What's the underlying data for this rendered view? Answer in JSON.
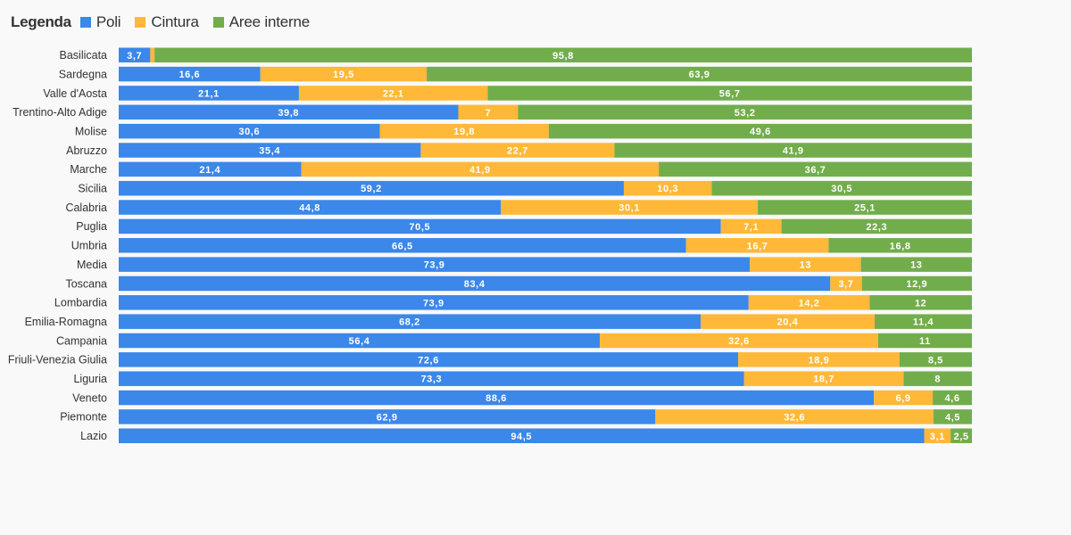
{
  "legend": {
    "title": "Legenda",
    "items": [
      {
        "name": "Poli",
        "color": "#3b87ea"
      },
      {
        "name": "Cintura",
        "color": "#ffb838"
      },
      {
        "name": "Aree interne",
        "color": "#72ad4c"
      }
    ]
  },
  "chart_data": {
    "type": "bar",
    "orientation": "horizontal",
    "stacked": true,
    "grid": false,
    "legend_position": "top-left",
    "categories": [
      "Basilicata",
      "Sardegna",
      "Valle d'Aosta",
      "Trentino-Alto Adige",
      "Molise",
      "Abruzzo",
      "Marche",
      "Sicilia",
      "Calabria",
      "Puglia",
      "Umbria",
      "Media",
      "Toscana",
      "Lombardia",
      "Emilia-Romagna",
      "Campania",
      "Friuli-Venezia Giulia",
      "Liguria",
      "Veneto",
      "Piemonte",
      "Lazio"
    ],
    "series": [
      {
        "name": "Poli",
        "color": "#3b87ea",
        "values": [
          3.7,
          16.6,
          21.1,
          39.8,
          30.6,
          35.4,
          21.4,
          59.2,
          44.8,
          70.5,
          66.5,
          73.9,
          83.4,
          73.9,
          68.2,
          56.4,
          72.6,
          73.3,
          88.6,
          62.9,
          94.5
        ]
      },
      {
        "name": "Cintura",
        "color": "#ffb838",
        "values": [
          0.5,
          19.5,
          22.1,
          7,
          19.8,
          22.7,
          41.9,
          10.3,
          30.1,
          7.1,
          16.7,
          13,
          3.7,
          14.2,
          20.4,
          32.6,
          18.9,
          18.7,
          6.9,
          32.6,
          3.1
        ]
      },
      {
        "name": "Aree interne",
        "color": "#72ad4c",
        "values": [
          95.8,
          63.9,
          56.7,
          53.2,
          49.6,
          41.9,
          36.7,
          30.5,
          25.1,
          22.3,
          16.8,
          13,
          12.9,
          12,
          11.4,
          11,
          8.5,
          8,
          4.6,
          4.5,
          2.5
        ]
      }
    ],
    "labels": [
      [
        "3,7",
        "",
        "95,8"
      ],
      [
        "16,6",
        "19,5",
        "63,9"
      ],
      [
        "21,1",
        "22,1",
        "56,7"
      ],
      [
        "39,8",
        "7",
        "53,2"
      ],
      [
        "30,6",
        "19,8",
        "49,6"
      ],
      [
        "35,4",
        "22,7",
        "41,9"
      ],
      [
        "21,4",
        "41,9",
        "36,7"
      ],
      [
        "59,2",
        "10,3",
        "30,5"
      ],
      [
        "44,8",
        "30,1",
        "25,1"
      ],
      [
        "70,5",
        "7,1",
        "22,3"
      ],
      [
        "66,5",
        "16,7",
        "16,8"
      ],
      [
        "73,9",
        "13",
        "13"
      ],
      [
        "83,4",
        "3,7",
        "12,9"
      ],
      [
        "73,9",
        "14,2",
        "12"
      ],
      [
        "68,2",
        "20,4",
        "11,4"
      ],
      [
        "56,4",
        "32,6",
        "11"
      ],
      [
        "72,6",
        "18,9",
        "8,5"
      ],
      [
        "73,3",
        "18,7",
        "8"
      ],
      [
        "88,6",
        "6,9",
        "4,6"
      ],
      [
        "62,9",
        "32,6",
        "4,5"
      ],
      [
        "94,5",
        "3,1",
        "2,5"
      ]
    ]
  }
}
